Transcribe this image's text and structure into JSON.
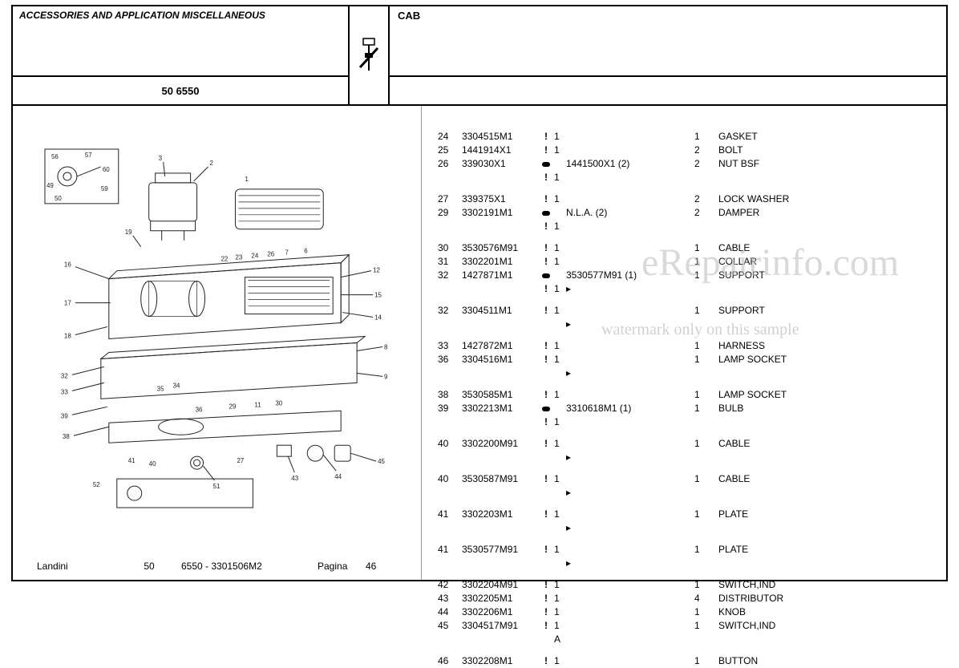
{
  "header": {
    "title": "ACCESSORIES AND APPLICATION MISCELLANEOUS",
    "model": "50 6550",
    "section": "CAB"
  },
  "footer": {
    "brand": "Landini",
    "num1": "50",
    "doc": "6550 - 3301506M2",
    "page_label": "Pagina",
    "page_num": "46"
  },
  "watermarks": {
    "wm1": "eRepairinfo.com",
    "wm2": "watermark only on this sample"
  },
  "parts": [
    {
      "ref": "24",
      "part": "3304515M1",
      "mark": "!",
      "a": "1",
      "sub": "",
      "qty": "1",
      "desc": "GASKET",
      "gap": false
    },
    {
      "ref": "25",
      "part": "1441914X1",
      "mark": "!",
      "a": "1",
      "sub": "",
      "qty": "2",
      "desc": "BOLT",
      "gap": false
    },
    {
      "ref": "26",
      "part": "339030X1",
      "mark": "●",
      "a": "",
      "sub": "1441500X1  (2)",
      "qty": "2",
      "desc": "NUT BSF",
      "gap": false
    },
    {
      "ref": "",
      "part": "",
      "mark": "!",
      "a": "1",
      "sub": "",
      "qty": "",
      "desc": "",
      "gap": false
    },
    {
      "ref": "27",
      "part": "339375X1",
      "mark": "!",
      "a": "1",
      "sub": "",
      "qty": "2",
      "desc": "LOCK WASHER",
      "gap": true
    },
    {
      "ref": "29",
      "part": "3302191M1",
      "mark": "●",
      "a": "",
      "sub": "N.L.A.  (2)",
      "qty": "2",
      "desc": "DAMPER",
      "gap": false
    },
    {
      "ref": "",
      "part": "",
      "mark": "!",
      "a": "1",
      "sub": "",
      "qty": "",
      "desc": "",
      "gap": false
    },
    {
      "ref": "30",
      "part": "3530576M91",
      "mark": "!",
      "a": "1",
      "sub": "",
      "qty": "1",
      "desc": "CABLE",
      "gap": true
    },
    {
      "ref": "31",
      "part": "3302201M1",
      "mark": "!",
      "a": "1",
      "sub": "",
      "qty": "1",
      "desc": "COLLAR",
      "gap": false
    },
    {
      "ref": "32",
      "part": "1427871M1",
      "mark": "●",
      "a": "",
      "sub": "3530577M91  (1)",
      "qty": "1",
      "desc": "SUPPORT",
      "gap": false
    },
    {
      "ref": "",
      "part": "",
      "mark": "!",
      "a": "1",
      "sub": "▸",
      "qty": "",
      "desc": "",
      "gap": false
    },
    {
      "ref": "32",
      "part": "3304511M1",
      "mark": "!",
      "a": "1",
      "sub": "",
      "qty": "1",
      "desc": "SUPPORT",
      "gap": true
    },
    {
      "ref": "",
      "part": "",
      "mark": "",
      "a": "",
      "sub": "▸",
      "qty": "",
      "desc": "",
      "gap": false
    },
    {
      "ref": "33",
      "part": "1427872M1",
      "mark": "!",
      "a": "1",
      "sub": "",
      "qty": "1",
      "desc": "HARNESS",
      "gap": true
    },
    {
      "ref": "36",
      "part": "3304516M1",
      "mark": "!",
      "a": "1",
      "sub": "",
      "qty": "1",
      "desc": "LAMP SOCKET",
      "gap": false
    },
    {
      "ref": "",
      "part": "",
      "mark": "",
      "a": "",
      "sub": "▸",
      "qty": "",
      "desc": "",
      "gap": false
    },
    {
      "ref": "38",
      "part": "3530585M1",
      "mark": "!",
      "a": "1",
      "sub": "",
      "qty": "1",
      "desc": "LAMP SOCKET",
      "gap": true
    },
    {
      "ref": "39",
      "part": "3302213M1",
      "mark": "●",
      "a": "",
      "sub": "3310618M1  (1)",
      "qty": "1",
      "desc": "BULB",
      "gap": false
    },
    {
      "ref": "",
      "part": "",
      "mark": "!",
      "a": "1",
      "sub": "",
      "qty": "",
      "desc": "",
      "gap": false
    },
    {
      "ref": "40",
      "part": "3302200M91",
      "mark": "!",
      "a": "1",
      "sub": "",
      "qty": "1",
      "desc": "CABLE",
      "gap": true
    },
    {
      "ref": "",
      "part": "",
      "mark": "",
      "a": "",
      "sub": "▸",
      "qty": "",
      "desc": "",
      "gap": false
    },
    {
      "ref": "40",
      "part": "3530587M91",
      "mark": "!",
      "a": "1",
      "sub": "",
      "qty": "1",
      "desc": "CABLE",
      "gap": true
    },
    {
      "ref": "",
      "part": "",
      "mark": "",
      "a": "",
      "sub": "▸",
      "qty": "",
      "desc": "",
      "gap": false
    },
    {
      "ref": "41",
      "part": "3302203M1",
      "mark": "!",
      "a": "1",
      "sub": "",
      "qty": "1",
      "desc": "PLATE",
      "gap": true
    },
    {
      "ref": "",
      "part": "",
      "mark": "",
      "a": "",
      "sub": "▸",
      "qty": "",
      "desc": "",
      "gap": false
    },
    {
      "ref": "41",
      "part": "3530577M91",
      "mark": "!",
      "a": "1",
      "sub": "",
      "qty": "1",
      "desc": "PLATE",
      "gap": true
    },
    {
      "ref": "",
      "part": "",
      "mark": "",
      "a": "",
      "sub": "▸",
      "qty": "",
      "desc": "",
      "gap": false
    },
    {
      "ref": "42",
      "part": "3302204M91",
      "mark": "!",
      "a": "1",
      "sub": "",
      "qty": "1",
      "desc": "SWITCH,IND",
      "gap": true
    },
    {
      "ref": "43",
      "part": "3302205M1",
      "mark": "!",
      "a": "1",
      "sub": "",
      "qty": "4",
      "desc": "DISTRIBUTOR",
      "gap": false
    },
    {
      "ref": "44",
      "part": "3302206M1",
      "mark": "!",
      "a": "1",
      "sub": "",
      "qty": "1",
      "desc": "KNOB",
      "gap": false
    },
    {
      "ref": "45",
      "part": "3304517M91",
      "mark": "!",
      "a": "1",
      "sub": "",
      "qty": "1",
      "desc": "SWITCH,IND",
      "gap": false
    },
    {
      "ref": "",
      "part": "",
      "mark": "",
      "a": "A",
      "sub": "",
      "qty": "",
      "desc": "",
      "gap": false
    },
    {
      "ref": "46",
      "part": "3302208M1",
      "mark": "!",
      "a": "1",
      "sub": "",
      "qty": "1",
      "desc": "BUTTON",
      "gap": true
    }
  ]
}
